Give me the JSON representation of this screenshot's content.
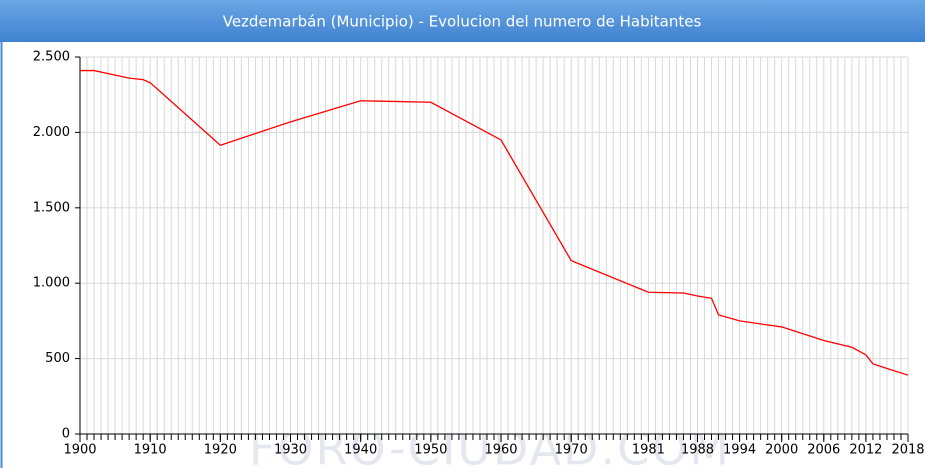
{
  "chart_data": {
    "type": "line",
    "title": "Vezdemarbán (Municipio) - Evolucion del numero de Habitantes",
    "watermark": "FORO-CIUDAD.COM",
    "x": [
      1900,
      1902,
      1907,
      1909,
      1910,
      1920,
      1930,
      1940,
      1950,
      1960,
      1970,
      1981,
      1986,
      1988,
      1990,
      1991,
      1994,
      2000,
      2006,
      2010,
      2012,
      2013,
      2018
    ],
    "series": [
      {
        "name": "Habitantes",
        "color": "#ff0000",
        "values": [
          2410,
          2410,
          2360,
          2350,
          2330,
          1915,
          2070,
          2210,
          2200,
          1950,
          1150,
          940,
          935,
          915,
          900,
          790,
          750,
          710,
          620,
          575,
          525,
          465,
          390
        ]
      }
    ],
    "xlim": [
      1900,
      2018
    ],
    "xticks": [
      1900,
      1910,
      1920,
      1930,
      1940,
      1950,
      1960,
      1970,
      1981,
      1988,
      1994,
      2000,
      2006,
      2012,
      2018
    ],
    "xminor_ticks": [
      1900,
      1901,
      1902,
      1903,
      1904,
      1905,
      1906,
      1907,
      1908,
      1909,
      1910,
      1911,
      1912,
      1913,
      1914,
      1915,
      1916,
      1917,
      1918,
      1919,
      1920,
      1921,
      1922,
      1923,
      1924,
      1925,
      1926,
      1927,
      1928,
      1929,
      1930,
      1931,
      1932,
      1933,
      1934,
      1935,
      1936,
      1937,
      1938,
      1939,
      1940,
      1941,
      1942,
      1943,
      1944,
      1945,
      1946,
      1947,
      1948,
      1949,
      1950,
      1951,
      1952,
      1953,
      1954,
      1955,
      1956,
      1957,
      1958,
      1959,
      1960,
      1961,
      1962,
      1963,
      1964,
      1965,
      1966,
      1967,
      1968,
      1969,
      1970,
      1971,
      1972,
      1973,
      1974,
      1975,
      1976,
      1977,
      1978,
      1979,
      1980,
      1981,
      1982,
      1983,
      1984,
      1985,
      1986,
      1987,
      1988,
      1989,
      1990,
      1991,
      1992,
      1993,
      1994,
      1995,
      1996,
      1997,
      1998,
      1999,
      2000,
      2001,
      2002,
      2003,
      2004,
      2005,
      2006,
      2007,
      2008,
      2009,
      2010,
      2011,
      2012,
      2013,
      2014,
      2015,
      2016,
      2017,
      2018
    ],
    "ylim": [
      0,
      2500
    ],
    "yticks": [
      0,
      500,
      {
        "value": 1000,
        "label": "1.000"
      },
      {
        "value": 1500,
        "label": "1.500"
      },
      {
        "value": 2000,
        "label": "2.000"
      },
      {
        "value": 2500,
        "label": "2.500"
      }
    ],
    "grid": true
  }
}
